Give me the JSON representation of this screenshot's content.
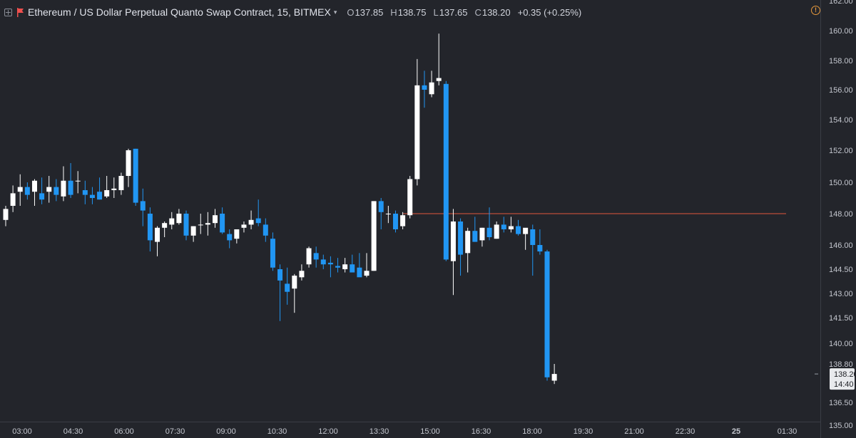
{
  "legend": {
    "title": "Ethereum / US Dollar Perpetual Quanto Swap Contract, 15, BITMEX",
    "caret": "▾",
    "o_key": "O",
    "o": "137.85",
    "h_key": "H",
    "h": "138.75",
    "l_key": "L",
    "l": "137.65",
    "c_key": "C",
    "c": "138.20",
    "change": "+0.35 (+0.25%)",
    "warn": "!"
  },
  "colors": {
    "up": "#ffffff",
    "down": "#2196f3",
    "level_line": "#e0583c",
    "background": "#23252b"
  },
  "chart_data": {
    "type": "candlestick",
    "interval": "15",
    "y_ticks": [
      "162.00",
      "160.00",
      "158.00",
      "156.00",
      "154.00",
      "152.00",
      "150.00",
      "148.00",
      "146.00",
      "144.50",
      "143.00",
      "141.50",
      "140.00",
      "138.80",
      "136.50",
      "135.00"
    ],
    "x_ticks": [
      "03:00",
      "04:30",
      "06:00",
      "07:30",
      "09:00",
      "10:30",
      "12:00",
      "13:30",
      "15:00",
      "16:30",
      "18:00",
      "19:30",
      "21:00",
      "22:30",
      "25",
      "01:30"
    ],
    "price_label": "138.20",
    "countdown_label": "14:40",
    "horizontal_line": 148.0,
    "candles": [
      [
        147.6,
        148.5,
        147.2,
        148.3
      ],
      [
        148.5,
        149.8,
        148.1,
        149.3
      ],
      [
        149.4,
        150.5,
        148.5,
        149.7
      ],
      [
        149.7,
        150.0,
        148.9,
        149.2
      ],
      [
        149.4,
        150.2,
        148.5,
        150.1
      ],
      [
        149.3,
        150.3,
        148.6,
        148.9
      ],
      [
        149.4,
        150.4,
        148.7,
        149.7
      ],
      [
        149.7,
        150.2,
        148.8,
        149.2
      ],
      [
        149.1,
        151.0,
        148.8,
        150.1
      ],
      [
        150.1,
        151.2,
        149.0,
        149.2
      ],
      [
        150.1,
        150.7,
        149.3,
        150.1
      ],
      [
        149.5,
        150.1,
        148.6,
        149.2
      ],
      [
        149.2,
        149.7,
        148.6,
        149.0
      ],
      [
        149.4,
        150.3,
        148.9,
        148.9
      ],
      [
        149.1,
        150.4,
        149.0,
        149.5
      ],
      [
        149.5,
        150.3,
        149.0,
        149.6
      ],
      [
        149.5,
        150.6,
        149.2,
        150.4
      ],
      [
        150.4,
        152.1,
        149.7,
        152.0
      ],
      [
        152.1,
        152.1,
        148.5,
        148.7
      ],
      [
        148.8,
        149.6,
        147.2,
        148.2
      ],
      [
        148.0,
        148.4,
        145.6,
        146.3
      ],
      [
        146.2,
        147.2,
        145.3,
        147.1
      ],
      [
        147.1,
        147.5,
        146.5,
        147.4
      ],
      [
        147.3,
        148.1,
        147.0,
        147.7
      ],
      [
        147.4,
        148.3,
        147.3,
        148.0
      ],
      [
        148.0,
        148.2,
        146.3,
        146.6
      ],
      [
        146.6,
        147.2,
        146.2,
        147.2
      ],
      [
        147.3,
        148.0,
        146.7,
        147.3
      ],
      [
        147.3,
        148.1,
        146.6,
        147.4
      ],
      [
        147.4,
        148.3,
        147.1,
        147.9
      ],
      [
        148.0,
        148.4,
        146.7,
        146.8
      ],
      [
        146.7,
        147.0,
        145.8,
        146.3
      ],
      [
        146.4,
        147.0,
        146.1,
        147.0
      ],
      [
        147.1,
        147.5,
        146.8,
        147.3
      ],
      [
        147.3,
        148.2,
        147.0,
        147.6
      ],
      [
        147.7,
        148.9,
        147.2,
        147.4
      ],
      [
        147.3,
        147.7,
        146.2,
        146.6
      ],
      [
        146.4,
        146.8,
        144.4,
        144.6
      ],
      [
        144.5,
        144.8,
        141.3,
        143.8
      ],
      [
        143.6,
        144.6,
        142.3,
        143.1
      ],
      [
        143.3,
        144.2,
        141.8,
        144.1
      ],
      [
        144.0,
        144.8,
        143.8,
        144.4
      ],
      [
        144.8,
        145.9,
        144.6,
        145.8
      ],
      [
        145.5,
        145.9,
        144.6,
        145.1
      ],
      [
        145.1,
        145.4,
        144.5,
        144.8
      ],
      [
        144.9,
        145.3,
        144.0,
        144.8
      ],
      [
        144.7,
        145.2,
        144.3,
        144.6
      ],
      [
        144.5,
        145.2,
        144.3,
        144.8
      ],
      [
        144.8,
        145.4,
        144.3,
        144.3
      ],
      [
        144.6,
        145.5,
        144.1,
        144.0
      ],
      [
        144.1,
        145.5,
        144.0,
        144.4
      ],
      [
        144.4,
        148.8,
        144.4,
        148.8
      ],
      [
        148.8,
        149.0,
        147.0,
        148.1
      ],
      [
        148.0,
        148.5,
        147.4,
        148.0
      ],
      [
        148.0,
        148.2,
        146.8,
        147.0
      ],
      [
        147.2,
        148.1,
        147.0,
        147.9
      ],
      [
        147.9,
        150.4,
        147.7,
        150.2
      ],
      [
        150.2,
        158.1,
        149.8,
        156.3
      ],
      [
        156.3,
        157.3,
        154.8,
        156.0
      ],
      [
        155.7,
        157.3,
        155.5,
        156.5
      ],
      [
        156.6,
        159.8,
        156.3,
        156.8
      ],
      [
        156.4,
        156.6,
        145.0,
        145.1
      ],
      [
        145.0,
        148.3,
        142.9,
        147.5
      ],
      [
        147.5,
        147.7,
        144.1,
        145.4
      ],
      [
        145.5,
        147.1,
        144.3,
        146.9
      ],
      [
        146.9,
        147.8,
        146.2,
        146.2
      ],
      [
        146.3,
        147.1,
        145.9,
        147.1
      ],
      [
        147.1,
        148.4,
        146.3,
        146.5
      ],
      [
        146.4,
        147.5,
        146.4,
        147.3
      ],
      [
        147.3,
        147.8,
        146.8,
        147.0
      ],
      [
        147.0,
        147.8,
        146.8,
        147.2
      ],
      [
        147.2,
        147.6,
        146.6,
        146.7
      ],
      [
        146.7,
        146.9,
        145.7,
        147.1
      ],
      [
        147.0,
        147.3,
        144.1,
        146.0
      ],
      [
        146.0,
        147.0,
        145.4,
        145.6
      ],
      [
        145.6,
        145.7,
        137.8,
        138.0
      ],
      [
        137.8,
        138.8,
        137.6,
        138.2
      ]
    ]
  }
}
